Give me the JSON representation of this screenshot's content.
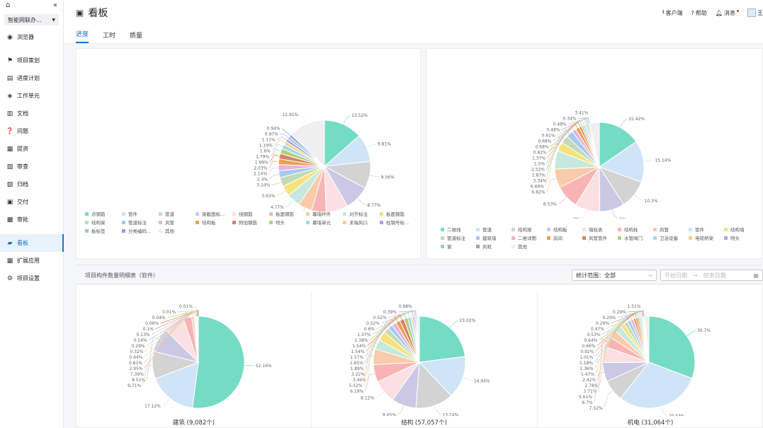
{
  "sidebar": {
    "project": "智能网联办...",
    "items": [
      {
        "label": "浏览器",
        "icon": "browser-icon",
        "group": 0
      },
      {
        "label": "项目策划",
        "icon": "flag-icon",
        "group": 1
      },
      {
        "label": "进度计划",
        "icon": "schedule-icon",
        "group": 1
      },
      {
        "label": "工作单元",
        "icon": "cube-icon",
        "group": 1
      },
      {
        "label": "文档",
        "icon": "document-icon",
        "group": 1
      },
      {
        "label": "问题",
        "icon": "question-icon",
        "group": 1
      },
      {
        "label": "提资",
        "icon": "submit-icon",
        "group": 1
      },
      {
        "label": "审查",
        "icon": "review-icon",
        "group": 1
      },
      {
        "label": "归档",
        "icon": "archive-icon",
        "group": 1
      },
      {
        "label": "交付",
        "icon": "delivery-icon",
        "group": 1
      },
      {
        "label": "审批",
        "icon": "approve-icon",
        "group": 1
      },
      {
        "label": "看板",
        "icon": "board-icon",
        "group": 2,
        "active": true
      },
      {
        "label": "扩展应用",
        "icon": "apps-icon",
        "group": 2
      },
      {
        "label": "项目设置",
        "icon": "gear-icon",
        "group": 2
      }
    ]
  },
  "header": {
    "title": "看板",
    "tools": [
      "客户端",
      "帮助",
      "消息",
      "王"
    ]
  },
  "tabs": [
    "进度",
    "工时",
    "质量"
  ],
  "filter": {
    "title": "项目构件数量明细表（软件）",
    "scope": "统计范围：全部",
    "start": "开始日期",
    "end": "结束日期"
  },
  "chart_data": [
    {
      "type": "pie",
      "title": "",
      "labels": [
        "点钢筋",
        "管件",
        "管道",
        "梁截面标...",
        "线钢筋",
        "板面钢筋",
        "幕墙杆件",
        "对齐标注",
        "板面钢筋",
        "结构梁",
        "管道标注",
        "风管",
        "结构板",
        "附加钢筋",
        "喷头",
        "幕墙单元",
        "末端风口",
        "柱钢号标...",
        "板标签",
        "分类编码...",
        "其他"
      ],
      "values": [
        13.52,
        9.81,
        9.56,
        8.77,
        7.77,
        5.08,
        4.87,
        4.77,
        3.63,
        3.24,
        2.4,
        2.14,
        2.03,
        1.89,
        1.79,
        1.6,
        1.19,
        1.11,
        0.97,
        0.94,
        12.91
      ]
    },
    {
      "type": "pie",
      "title": "",
      "labels": [
        "二维线",
        "管道",
        "结构梁",
        "结构板",
        "墙柱表",
        "结构柱",
        "风管",
        "管件",
        "结构墙",
        "管道标注",
        "建筑墙",
        "二维详图",
        "房间",
        "风管管件",
        "水管阀门",
        "卫浴设备",
        "电缆桥架",
        "喷头",
        "窗",
        "风机",
        "其他"
      ],
      "values": [
        15.42,
        15.14,
        10.3,
        9,
        9,
        8.53,
        6.82,
        6.69,
        3.34,
        2.87,
        2.52,
        1.5,
        1.37,
        0.82,
        0.68,
        0.68,
        0.61,
        0.48,
        0.48,
        0.34,
        3.41
      ]
    },
    {
      "type": "pie",
      "title": "建筑 (9,082个)",
      "values": [
        52.16,
        17.12,
        9.71,
        8.51,
        7.39,
        2.95,
        0.81,
        0.44,
        0.32,
        0.29,
        0.14,
        0.13,
        0.1,
        0.06,
        0.04,
        0.01,
        0.01
      ]
    },
    {
      "type": "pie",
      "title": "结构 (57,057个)",
      "values": [
        23.02,
        14.94,
        13.24,
        8.65,
        8.12,
        6.19,
        5.52,
        3.46,
        3.22,
        1.89,
        1.65,
        1.57,
        1.54,
        1.54,
        1.38,
        1.07,
        0.6,
        0.52,
        0.52,
        0.39,
        0.98
      ]
    },
    {
      "type": "pie",
      "title": "机电 (31,064个)",
      "values": [
        30.7,
        29.93,
        7.52,
        6.7,
        5.61,
        3.71,
        2.78,
        2.42,
        1.47,
        1.36,
        1.18,
        1.01,
        0.92,
        0.66,
        0.64,
        0.53,
        0.47,
        0.29,
        0.29,
        0.29,
        1.51
      ]
    }
  ],
  "colors": [
    "#74dcc4",
    "#cfe4f7",
    "#d3d3d3",
    "#c9c9e6",
    "#fcdfe2",
    "#f8b4b4",
    "#f9cba9",
    "#c6e8dd",
    "#f6e27a",
    "#c2dbb5",
    "#a6c8f2",
    "#e6b3dc",
    "#e9a24d",
    "#d9826b",
    "#b4d07c",
    "#a2d8e6",
    "#efd28e",
    "#b0a5d9",
    "#9ec3e3",
    "#8fa6cf",
    "#efefef"
  ]
}
